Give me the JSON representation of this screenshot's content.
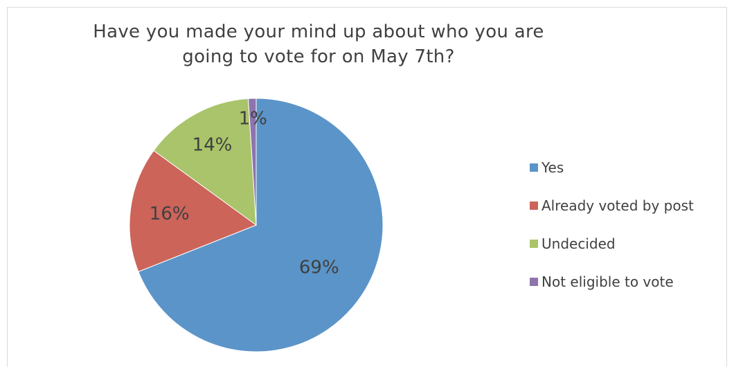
{
  "chart_data": {
    "type": "pie",
    "title": "Have you made your mind up about who you are going to vote for on May 7th?",
    "categories": [
      "Yes",
      "Already voted by post",
      "Undecided",
      "Not eligible to vote"
    ],
    "values": [
      69,
      16,
      14,
      1
    ],
    "data_labels": [
      "69%",
      "16%",
      "14%",
      "1%"
    ],
    "colors": [
      "#5b94c8",
      "#cc645a",
      "#a9c46a",
      "#8e74ad"
    ],
    "legend_position": "right",
    "start_angle": "top, clockwise"
  }
}
